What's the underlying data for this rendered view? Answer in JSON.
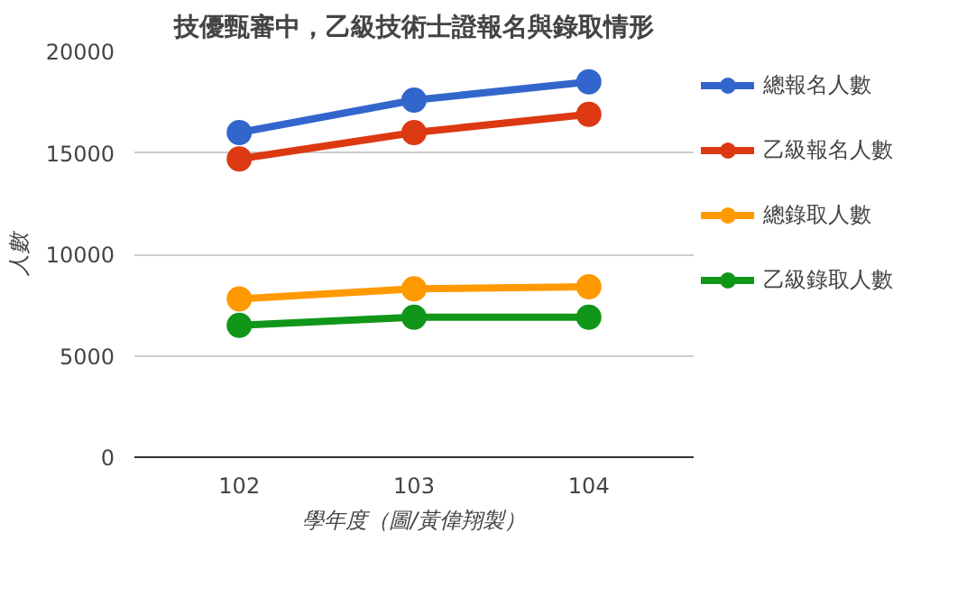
{
  "chart_data": {
    "type": "line",
    "title": "技優甄審中，乙級技術士證報名與錄取情形",
    "xlabel": "學年度（圖/黃偉翔製）",
    "ylabel": "人數",
    "categories": [
      "102",
      "103",
      "104"
    ],
    "series": [
      {
        "name": "總報名人數",
        "color": "#3366cc",
        "values": [
          16000,
          17600,
          18500
        ]
      },
      {
        "name": "乙級報名人數",
        "color": "#dc3912",
        "values": [
          14700,
          16000,
          16900
        ]
      },
      {
        "name": "總錄取人數",
        "color": "#ff9900",
        "values": [
          7800,
          8300,
          8400
        ]
      },
      {
        "name": "乙級錄取人數",
        "color": "#109618",
        "values": [
          6500,
          6900,
          6900
        ]
      }
    ],
    "ylim": [
      0,
      20000
    ],
    "yticks": [
      0,
      5000,
      10000,
      15000,
      20000
    ],
    "grid": "y",
    "legend": "right",
    "marker": "circle",
    "line_style": "solid"
  }
}
